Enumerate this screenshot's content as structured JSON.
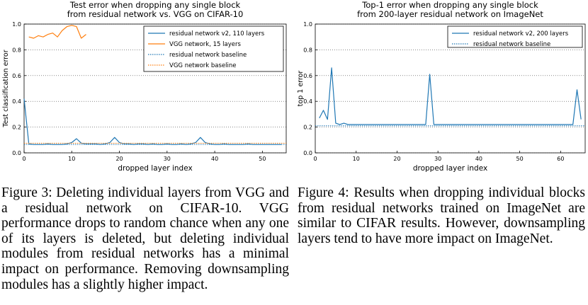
{
  "chart_data": [
    {
      "type": "line",
      "title": "Test error when dropping any single block from residual network vs. VGG on CIFAR-10",
      "title_lines": [
        "Test error when dropping any single block",
        "from residual network vs. VGG on CIFAR-10"
      ],
      "xlabel": "dropped layer index",
      "ylabel": "Test classification error",
      "xlim": [
        0,
        55
      ],
      "ylim": [
        0.0,
        1.0
      ],
      "xticks": [
        0,
        10,
        20,
        30,
        40,
        50
      ],
      "xtick_labels": [
        "0",
        "10",
        "20",
        "30",
        "40",
        "50"
      ],
      "yticks": [
        0.0,
        0.2,
        0.4,
        0.6,
        0.8,
        1.0
      ],
      "ytick_labels": [
        "0.0",
        "0.2",
        "0.4",
        "0.6",
        "0.8",
        "1.0"
      ],
      "grid": "horizontal dotted",
      "legend_position": "top-right",
      "series": [
        {
          "name": "residual network v2, 110 layers",
          "color": "#1f77b4",
          "style": "solid",
          "x": [
            0,
            1,
            2,
            3,
            4,
            5,
            6,
            7,
            8,
            9,
            10,
            11,
            12,
            13,
            14,
            15,
            16,
            17,
            18,
            19,
            20,
            21,
            22,
            23,
            24,
            25,
            26,
            27,
            28,
            29,
            30,
            31,
            32,
            33,
            34,
            35,
            36,
            37,
            38,
            39,
            40,
            41,
            42,
            43,
            44,
            45,
            46,
            47,
            48,
            49,
            50,
            51,
            52,
            53,
            54
          ],
          "y": [
            0.42,
            0.07,
            0.065,
            0.065,
            0.065,
            0.07,
            0.065,
            0.065,
            0.065,
            0.07,
            0.08,
            0.11,
            0.075,
            0.07,
            0.07,
            0.07,
            0.065,
            0.07,
            0.08,
            0.12,
            0.08,
            0.07,
            0.07,
            0.065,
            0.07,
            0.07,
            0.065,
            0.07,
            0.065,
            0.065,
            0.07,
            0.065,
            0.065,
            0.07,
            0.065,
            0.07,
            0.08,
            0.12,
            0.08,
            0.07,
            0.065,
            0.065,
            0.07,
            0.065,
            0.065,
            0.065,
            0.065,
            0.07,
            0.065,
            0.065,
            0.065,
            0.065,
            0.065,
            0.065,
            0.065
          ]
        },
        {
          "name": "VGG network, 15 layers",
          "color": "#ff7f0e",
          "style": "solid",
          "x": [
            1,
            2,
            3,
            4,
            5,
            6,
            7,
            8,
            9,
            10,
            11,
            12,
            13
          ],
          "y": [
            0.9,
            0.89,
            0.91,
            0.9,
            0.92,
            0.93,
            0.9,
            0.95,
            0.98,
            0.99,
            0.98,
            0.89,
            0.92
          ]
        },
        {
          "name": "residual network baseline",
          "color": "#1f77b4",
          "style": "dotted",
          "constant": 0.065
        },
        {
          "name": "VGG network baseline",
          "color": "#ff7f0e",
          "style": "dotted",
          "constant": 0.075
        }
      ]
    },
    {
      "type": "line",
      "title": "Top-1 error when dropping any single block from 200-layer residual network on ImageNet",
      "title_lines": [
        "Top-1 error when dropping any single block",
        "from 200-layer residual network on ImageNet"
      ],
      "xlabel": "dropped layer index",
      "ylabel": "top 1 error",
      "xlim": [
        0,
        66
      ],
      "ylim": [
        0.0,
        1.0
      ],
      "xticks": [
        0,
        10,
        20,
        30,
        40,
        50,
        60
      ],
      "xtick_labels": [
        "0",
        "10",
        "20",
        "30",
        "40",
        "50",
        "60"
      ],
      "yticks": [
        0.0,
        0.2,
        0.4,
        0.6,
        0.8,
        1.0
      ],
      "ytick_labels": [
        "0.0",
        "0.2",
        "0.4",
        "0.6",
        "0.8",
        "1.0"
      ],
      "grid": "horizontal dotted",
      "legend_position": "top-right",
      "series": [
        {
          "name": "residual network v2, 200 layers",
          "color": "#1f77b4",
          "style": "solid",
          "x": [
            1,
            2,
            3,
            4,
            5,
            6,
            7,
            8,
            9,
            10,
            11,
            12,
            13,
            14,
            15,
            16,
            17,
            18,
            19,
            20,
            21,
            22,
            23,
            24,
            25,
            26,
            27,
            28,
            29,
            30,
            31,
            32,
            33,
            34,
            35,
            36,
            37,
            38,
            39,
            40,
            41,
            42,
            43,
            44,
            45,
            46,
            47,
            48,
            49,
            50,
            51,
            52,
            53,
            54,
            55,
            56,
            57,
            58,
            59,
            60,
            61,
            62,
            63,
            64,
            65
          ],
          "y": [
            0.27,
            0.33,
            0.26,
            0.66,
            0.23,
            0.22,
            0.23,
            0.22,
            0.22,
            0.22,
            0.22,
            0.22,
            0.22,
            0.22,
            0.22,
            0.22,
            0.22,
            0.22,
            0.22,
            0.22,
            0.22,
            0.22,
            0.22,
            0.22,
            0.22,
            0.22,
            0.22,
            0.61,
            0.22,
            0.22,
            0.22,
            0.22,
            0.22,
            0.22,
            0.22,
            0.22,
            0.22,
            0.22,
            0.22,
            0.22,
            0.22,
            0.22,
            0.22,
            0.22,
            0.22,
            0.22,
            0.22,
            0.22,
            0.22,
            0.22,
            0.22,
            0.22,
            0.22,
            0.22,
            0.22,
            0.22,
            0.22,
            0.22,
            0.22,
            0.22,
            0.22,
            0.22,
            0.22,
            0.49,
            0.26
          ]
        },
        {
          "name": "residual network baseline",
          "color": "#1f77b4",
          "style": "dotted",
          "constant": 0.21
        }
      ]
    }
  ],
  "captions": {
    "figure3": "Figure 3:  Deleting individual layers from VGG and a residual network on CIFAR-10. VGG performance drops to random chance when any one of its layers is deleted, but deleting individual modules from residual networks has a minimal impact on performance. Removing downsampling modules has a slightly higher impact.",
    "figure4": "Figure 4:   Results when dropping individual blocks from residual networks trained on ImageNet are similar to CIFAR results. However, downsampling layers tend to have more impact on ImageNet."
  }
}
